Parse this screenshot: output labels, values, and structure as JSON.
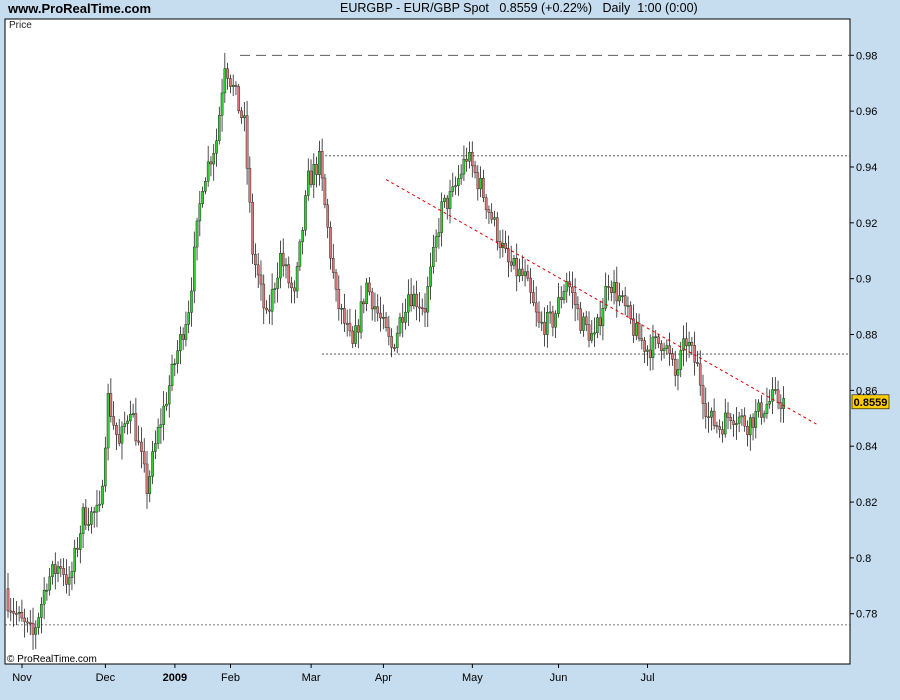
{
  "header": {
    "site": "www.ProRealTime.com",
    "title": "EURGBP - EUR/GBP Spot   0.8559 (+0.22%)   Daily  1:00 (0:00)"
  },
  "panel_label": "Price",
  "copyright": "© ProRealTime.com",
  "colors": {
    "background": "#c6dcef",
    "plot": "#ffffff",
    "up": "#33cc33",
    "down": "#dd7777",
    "trendline": "#dd0000",
    "price_tag": "#ffcc00"
  },
  "chart_data": {
    "type": "candlestick",
    "ylim": [
      0.762,
      0.993
    ],
    "ytick_labels": [
      "0.98",
      "0.96",
      "0.94",
      "0.92",
      "0.9",
      "0.88",
      "0.86",
      "0.84",
      "0.82",
      "0.8",
      "0.78"
    ],
    "month_labels": [
      "Nov",
      "Dec",
      "2009",
      "Feb",
      "Mar",
      "Apr",
      "May",
      "Jun",
      "Jul"
    ],
    "month_ticks": [
      0,
      30,
      55,
      75,
      104,
      130,
      162,
      193,
      225
    ],
    "last_price": "0.8559",
    "horizontal_levels": [
      0.98,
      0.944,
      0.873,
      0.776
    ],
    "trendline": {
      "start": [
        136,
        0.9355
      ],
      "end": [
        291,
        0.8478
      ]
    },
    "ohlc_points": [
      [
        0,
        0.785
      ],
      [
        4,
        0.778
      ],
      [
        9,
        0.772
      ],
      [
        14,
        0.792
      ],
      [
        19,
        0.798
      ],
      [
        22,
        0.79
      ],
      [
        27,
        0.815
      ],
      [
        33,
        0.816
      ],
      [
        36,
        0.857
      ],
      [
        40,
        0.84
      ],
      [
        44,
        0.855
      ],
      [
        50,
        0.825
      ],
      [
        54,
        0.845
      ],
      [
        60,
        0.87
      ],
      [
        65,
        0.89
      ],
      [
        70,
        0.935
      ],
      [
        75,
        0.95
      ],
      [
        78,
        0.978
      ],
      [
        85,
        0.955
      ],
      [
        88,
        0.91
      ],
      [
        93,
        0.885
      ],
      [
        98,
        0.908
      ],
      [
        103,
        0.893
      ],
      [
        108,
        0.935
      ],
      [
        112,
        0.942
      ],
      [
        118,
        0.893
      ],
      [
        124,
        0.875
      ],
      [
        129,
        0.898
      ],
      [
        134,
        0.885
      ],
      [
        138,
        0.875
      ],
      [
        144,
        0.895
      ],
      [
        150,
        0.89
      ],
      [
        156,
        0.925
      ],
      [
        160,
        0.93
      ],
      [
        165,
        0.944
      ],
      [
        170,
        0.933
      ],
      [
        174,
        0.922
      ],
      [
        180,
        0.905
      ],
      [
        186,
        0.9
      ],
      [
        191,
        0.883
      ],
      [
        196,
        0.885
      ],
      [
        201,
        0.9
      ],
      [
        206,
        0.885
      ],
      [
        211,
        0.878
      ],
      [
        216,
        0.9
      ],
      [
        220,
        0.893
      ],
      [
        226,
        0.88
      ],
      [
        230,
        0.875
      ],
      [
        236,
        0.878
      ],
      [
        240,
        0.865
      ],
      [
        244,
        0.878
      ],
      [
        248,
        0.868
      ],
      [
        252,
        0.85
      ],
      [
        256,
        0.847
      ],
      [
        260,
        0.852
      ],
      [
        266,
        0.848
      ],
      [
        271,
        0.853
      ],
      [
        275,
        0.857
      ],
      [
        279,
        0.856
      ]
    ]
  }
}
